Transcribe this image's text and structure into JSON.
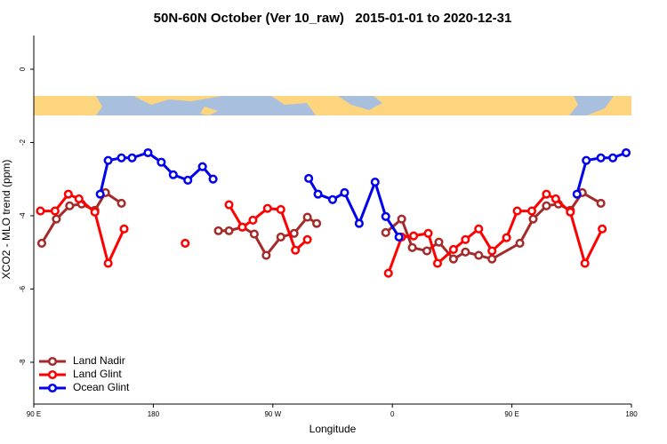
{
  "chart_data": {
    "type": "line",
    "title": "50N-60N October (Ver 10_raw)   2015-01-01 to 2020-12-31",
    "x_label": "Longitude",
    "y_label": "XCO2 - MLO trend (ppm)",
    "xlim": [
      90,
      540
    ],
    "ylim": [
      -9.14,
      0.92
    ],
    "xticks": [
      {
        "value": 90,
        "label": "90 E"
      },
      180,
      {
        "value": 270,
        "label": "90 W"
      },
      {
        "value": 360,
        "label": "0"
      },
      {
        "value": 450,
        "label": "90 E"
      },
      {
        "value": 540,
        "label": "180"
      }
    ],
    "yticks": [
      0,
      -2,
      -4,
      -6,
      -8
    ],
    "legend": "bottom-left",
    "series": [
      {
        "name": "Land Nadir",
        "color": "#a52a2a",
        "x": [
          96,
          107,
          117,
          126,
          136,
          144,
          156,
          null,
          229,
          237,
          247,
          256,
          265,
          276,
          286,
          296,
          303,
          null,
          355,
          367,
          375,
          386,
          395,
          406,
          415,
          425,
          435,
          456,
          466,
          476,
          485,
          494,
          503,
          517
        ],
        "values": [
          -4.75,
          -4.09,
          -3.73,
          -3.68,
          -3.85,
          -3.37,
          -3.66,
          null,
          -4.41,
          -4.41,
          -4.31,
          -4.5,
          -5.08,
          -4.58,
          -4.48,
          -4.04,
          -4.21,
          null,
          -4.46,
          -4.09,
          -4.87,
          -4.96,
          -4.72,
          -5.18,
          -4.99,
          -5.08,
          -5.18,
          -4.75,
          -4.09,
          -3.73,
          -3.68,
          -3.85,
          -3.37,
          -3.66
        ]
      },
      {
        "name": "Land Glint",
        "color": "#ff0000",
        "x": [
          95,
          106,
          116,
          124,
          136,
          146,
          158,
          null,
          204,
          null,
          237,
          247,
          255,
          266,
          276,
          287,
          296,
          null,
          357,
          367,
          376,
          387,
          394,
          406,
          415,
          425,
          435,
          446,
          454,
          465,
          476,
          483,
          494,
          505,
          518
        ],
        "values": [
          -3.87,
          -3.87,
          -3.41,
          -3.54,
          -3.9,
          -5.3,
          -4.36,
          null,
          -4.75,
          null,
          -3.7,
          -4.31,
          -4.12,
          -3.8,
          -3.83,
          -4.94,
          -4.65,
          null,
          -5.57,
          -4.58,
          -4.55,
          -4.48,
          -5.3,
          -4.92,
          -4.65,
          -4.36,
          -4.96,
          -4.6,
          -3.87,
          -3.87,
          -3.41,
          -3.54,
          -3.9,
          -5.3,
          -4.36
        ]
      },
      {
        "name": "Ocean Glint",
        "color": "#0000ee",
        "x": [
          140,
          146,
          156,
          164,
          176,
          186,
          195,
          206,
          217,
          225,
          null,
          297,
          304,
          315,
          324,
          335,
          347,
          355,
          365,
          null,
          499,
          506,
          517,
          526,
          536
        ],
        "values": [
          -3.41,
          -2.49,
          -2.42,
          -2.42,
          -2.28,
          -2.54,
          -2.88,
          -3.03,
          -2.66,
          -3.0,
          null,
          -2.98,
          -3.41,
          -3.56,
          -3.37,
          -4.21,
          -3.08,
          -4.02,
          -4.58,
          null,
          -3.41,
          -2.49,
          -2.42,
          -2.42,
          -2.28
        ]
      }
    ]
  }
}
